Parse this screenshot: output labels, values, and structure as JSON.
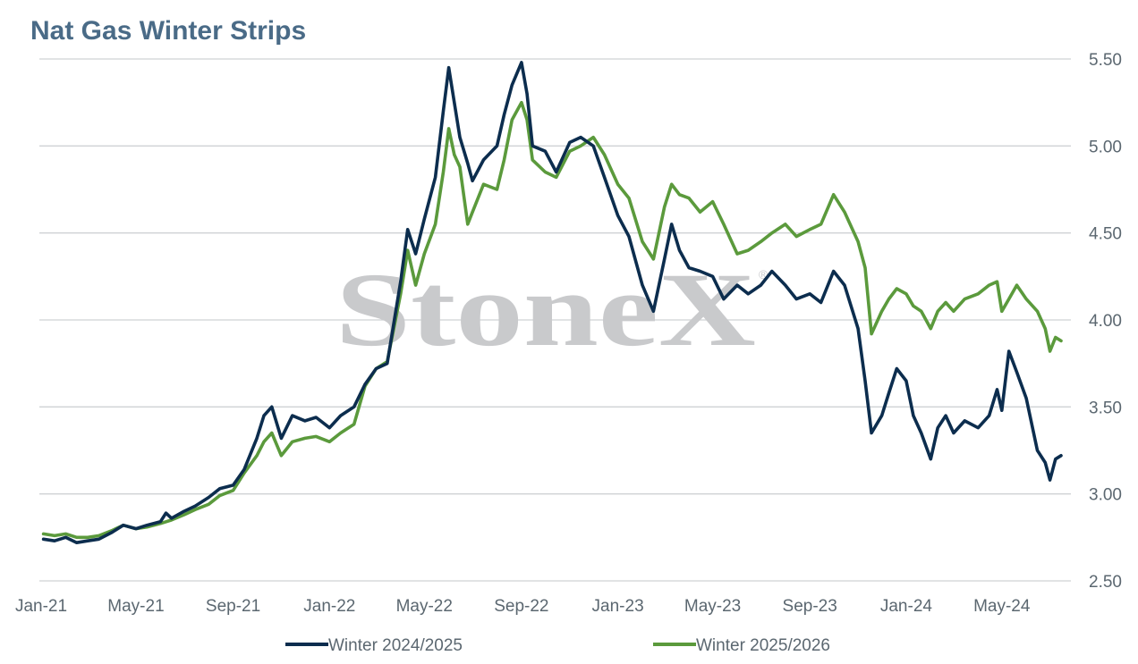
{
  "chart_data": {
    "type": "line",
    "title": "Nat Gas Winter Strips",
    "watermark": "StoneX",
    "watermark_mark": "®",
    "xlabel": "",
    "ylabel": "",
    "x_tick_labels": [
      "Jan-21",
      "May-21",
      "Sep-21",
      "Jan-22",
      "May-22",
      "Sep-22",
      "Jan-23",
      "May-23",
      "Sep-23",
      "Jan-24",
      "May-24"
    ],
    "y_tick_labels": [
      "5.50",
      "5.00",
      "4.50",
      "4.00",
      "3.50",
      "3.00",
      "2.50"
    ],
    "ylim": [
      2.5,
      5.5
    ],
    "y_axis_side": "right",
    "grid": "horizontal",
    "legend_position": "bottom",
    "colors": {
      "title": "#4a6b87",
      "grid": "#cfd2d4",
      "tick_text": "#5b6770"
    },
    "series": [
      {
        "name": "Winter 2024/2025",
        "color": "#0c2d4e",
        "points": [
          [
            "2021-01-04",
            2.74
          ],
          [
            "2021-01-18",
            2.73
          ],
          [
            "2021-02-01",
            2.75
          ],
          [
            "2021-02-15",
            2.72
          ],
          [
            "2021-03-01",
            2.73
          ],
          [
            "2021-03-15",
            2.74
          ],
          [
            "2021-04-01",
            2.78
          ],
          [
            "2021-04-15",
            2.82
          ],
          [
            "2021-05-01",
            2.8
          ],
          [
            "2021-05-15",
            2.82
          ],
          [
            "2021-06-01",
            2.84
          ],
          [
            "2021-06-08",
            2.89
          ],
          [
            "2021-06-15",
            2.86
          ],
          [
            "2021-07-01",
            2.9
          ],
          [
            "2021-07-15",
            2.93
          ],
          [
            "2021-08-01",
            2.98
          ],
          [
            "2021-08-15",
            3.03
          ],
          [
            "2021-09-01",
            3.05
          ],
          [
            "2021-09-15",
            3.14
          ],
          [
            "2021-10-01",
            3.32
          ],
          [
            "2021-10-10",
            3.45
          ],
          [
            "2021-10-20",
            3.5
          ],
          [
            "2021-11-01",
            3.32
          ],
          [
            "2021-11-15",
            3.45
          ],
          [
            "2021-12-01",
            3.42
          ],
          [
            "2021-12-15",
            3.44
          ],
          [
            "2022-01-01",
            3.38
          ],
          [
            "2022-01-15",
            3.45
          ],
          [
            "2022-02-01",
            3.5
          ],
          [
            "2022-02-15",
            3.63
          ],
          [
            "2022-03-01",
            3.72
          ],
          [
            "2022-03-15",
            3.75
          ],
          [
            "2022-04-01",
            4.22
          ],
          [
            "2022-04-10",
            4.52
          ],
          [
            "2022-04-20",
            4.38
          ],
          [
            "2022-05-01",
            4.58
          ],
          [
            "2022-05-15",
            4.82
          ],
          [
            "2022-05-25",
            5.2
          ],
          [
            "2022-06-01",
            5.45
          ],
          [
            "2022-06-08",
            5.25
          ],
          [
            "2022-06-15",
            5.05
          ],
          [
            "2022-06-25",
            4.9
          ],
          [
            "2022-07-01",
            4.8
          ],
          [
            "2022-07-15",
            4.92
          ],
          [
            "2022-08-01",
            5.0
          ],
          [
            "2022-08-10",
            5.18
          ],
          [
            "2022-08-20",
            5.35
          ],
          [
            "2022-09-01",
            5.48
          ],
          [
            "2022-09-08",
            5.3
          ],
          [
            "2022-09-15",
            5.0
          ],
          [
            "2022-10-01",
            4.97
          ],
          [
            "2022-10-15",
            4.85
          ],
          [
            "2022-11-01",
            5.02
          ],
          [
            "2022-11-15",
            5.05
          ],
          [
            "2022-12-01",
            5.0
          ],
          [
            "2022-12-15",
            4.82
          ],
          [
            "2023-01-01",
            4.6
          ],
          [
            "2023-01-15",
            4.48
          ],
          [
            "2023-02-01",
            4.2
          ],
          [
            "2023-02-15",
            4.05
          ],
          [
            "2023-03-01",
            4.35
          ],
          [
            "2023-03-10",
            4.55
          ],
          [
            "2023-03-20",
            4.4
          ],
          [
            "2023-04-01",
            4.3
          ],
          [
            "2023-04-15",
            4.28
          ],
          [
            "2023-05-01",
            4.25
          ],
          [
            "2023-05-15",
            4.12
          ],
          [
            "2023-06-01",
            4.2
          ],
          [
            "2023-06-15",
            4.15
          ],
          [
            "2023-07-01",
            4.2
          ],
          [
            "2023-07-15",
            4.28
          ],
          [
            "2023-08-01",
            4.2
          ],
          [
            "2023-08-15",
            4.12
          ],
          [
            "2023-09-01",
            4.15
          ],
          [
            "2023-09-15",
            4.1
          ],
          [
            "2023-10-01",
            4.28
          ],
          [
            "2023-10-15",
            4.2
          ],
          [
            "2023-11-01",
            3.95
          ],
          [
            "2023-11-10",
            3.65
          ],
          [
            "2023-11-18",
            3.35
          ],
          [
            "2023-12-01",
            3.45
          ],
          [
            "2023-12-10",
            3.58
          ],
          [
            "2023-12-20",
            3.72
          ],
          [
            "2024-01-01",
            3.65
          ],
          [
            "2024-01-10",
            3.45
          ],
          [
            "2024-01-20",
            3.35
          ],
          [
            "2024-02-01",
            3.2
          ],
          [
            "2024-02-10",
            3.38
          ],
          [
            "2024-02-20",
            3.45
          ],
          [
            "2024-03-01",
            3.35
          ],
          [
            "2024-03-15",
            3.42
          ],
          [
            "2024-04-01",
            3.38
          ],
          [
            "2024-04-15",
            3.45
          ],
          [
            "2024-04-25",
            3.6
          ],
          [
            "2024-05-01",
            3.48
          ],
          [
            "2024-05-10",
            3.82
          ],
          [
            "2024-05-20",
            3.7
          ],
          [
            "2024-06-01",
            3.55
          ],
          [
            "2024-06-15",
            3.25
          ],
          [
            "2024-06-25",
            3.18
          ],
          [
            "2024-07-01",
            3.08
          ],
          [
            "2024-07-08",
            3.2
          ],
          [
            "2024-07-15",
            3.22
          ]
        ]
      },
      {
        "name": "Winter 2025/2026",
        "color": "#5b9a3c",
        "points": [
          [
            "2021-01-04",
            2.77
          ],
          [
            "2021-01-18",
            2.76
          ],
          [
            "2021-02-01",
            2.77
          ],
          [
            "2021-02-15",
            2.75
          ],
          [
            "2021-03-01",
            2.75
          ],
          [
            "2021-03-15",
            2.76
          ],
          [
            "2021-04-01",
            2.79
          ],
          [
            "2021-04-15",
            2.82
          ],
          [
            "2021-05-01",
            2.8
          ],
          [
            "2021-05-15",
            2.81
          ],
          [
            "2021-06-01",
            2.83
          ],
          [
            "2021-06-15",
            2.85
          ],
          [
            "2021-07-01",
            2.88
          ],
          [
            "2021-07-15",
            2.91
          ],
          [
            "2021-08-01",
            2.94
          ],
          [
            "2021-08-15",
            2.99
          ],
          [
            "2021-09-01",
            3.02
          ],
          [
            "2021-09-15",
            3.12
          ],
          [
            "2021-10-01",
            3.22
          ],
          [
            "2021-10-10",
            3.3
          ],
          [
            "2021-10-20",
            3.35
          ],
          [
            "2021-11-01",
            3.22
          ],
          [
            "2021-11-15",
            3.3
          ],
          [
            "2021-12-01",
            3.32
          ],
          [
            "2021-12-15",
            3.33
          ],
          [
            "2022-01-01",
            3.3
          ],
          [
            "2022-01-15",
            3.35
          ],
          [
            "2022-02-01",
            3.4
          ],
          [
            "2022-02-15",
            3.62
          ],
          [
            "2022-03-01",
            3.72
          ],
          [
            "2022-03-15",
            3.76
          ],
          [
            "2022-04-01",
            4.15
          ],
          [
            "2022-04-10",
            4.4
          ],
          [
            "2022-04-20",
            4.2
          ],
          [
            "2022-05-01",
            4.38
          ],
          [
            "2022-05-15",
            4.55
          ],
          [
            "2022-05-25",
            4.85
          ],
          [
            "2022-06-01",
            5.1
          ],
          [
            "2022-06-08",
            4.95
          ],
          [
            "2022-06-15",
            4.88
          ],
          [
            "2022-06-25",
            4.55
          ],
          [
            "2022-07-01",
            4.62
          ],
          [
            "2022-07-15",
            4.78
          ],
          [
            "2022-08-01",
            4.75
          ],
          [
            "2022-08-10",
            4.92
          ],
          [
            "2022-08-20",
            5.15
          ],
          [
            "2022-09-01",
            5.25
          ],
          [
            "2022-09-08",
            5.15
          ],
          [
            "2022-09-15",
            4.92
          ],
          [
            "2022-10-01",
            4.85
          ],
          [
            "2022-10-15",
            4.82
          ],
          [
            "2022-11-01",
            4.97
          ],
          [
            "2022-11-15",
            5.0
          ],
          [
            "2022-12-01",
            5.05
          ],
          [
            "2022-12-15",
            4.95
          ],
          [
            "2023-01-01",
            4.78
          ],
          [
            "2023-01-15",
            4.7
          ],
          [
            "2023-02-01",
            4.45
          ],
          [
            "2023-02-15",
            4.35
          ],
          [
            "2023-03-01",
            4.65
          ],
          [
            "2023-03-10",
            4.78
          ],
          [
            "2023-03-20",
            4.72
          ],
          [
            "2023-04-01",
            4.7
          ],
          [
            "2023-04-15",
            4.62
          ],
          [
            "2023-05-01",
            4.68
          ],
          [
            "2023-05-15",
            4.55
          ],
          [
            "2023-06-01",
            4.38
          ],
          [
            "2023-06-15",
            4.4
          ],
          [
            "2023-07-01",
            4.45
          ],
          [
            "2023-07-15",
            4.5
          ],
          [
            "2023-08-01",
            4.55
          ],
          [
            "2023-08-15",
            4.48
          ],
          [
            "2023-09-01",
            4.52
          ],
          [
            "2023-09-15",
            4.55
          ],
          [
            "2023-10-01",
            4.72
          ],
          [
            "2023-10-15",
            4.62
          ],
          [
            "2023-11-01",
            4.45
          ],
          [
            "2023-11-10",
            4.3
          ],
          [
            "2023-11-18",
            3.92
          ],
          [
            "2023-12-01",
            4.05
          ],
          [
            "2023-12-10",
            4.12
          ],
          [
            "2023-12-20",
            4.18
          ],
          [
            "2024-01-01",
            4.15
          ],
          [
            "2024-01-10",
            4.08
          ],
          [
            "2024-01-20",
            4.05
          ],
          [
            "2024-02-01",
            3.95
          ],
          [
            "2024-02-10",
            4.05
          ],
          [
            "2024-02-20",
            4.1
          ],
          [
            "2024-03-01",
            4.05
          ],
          [
            "2024-03-15",
            4.12
          ],
          [
            "2024-04-01",
            4.15
          ],
          [
            "2024-04-15",
            4.2
          ],
          [
            "2024-04-25",
            4.22
          ],
          [
            "2024-05-01",
            4.05
          ],
          [
            "2024-05-10",
            4.12
          ],
          [
            "2024-05-20",
            4.2
          ],
          [
            "2024-06-01",
            4.12
          ],
          [
            "2024-06-15",
            4.05
          ],
          [
            "2024-06-25",
            3.95
          ],
          [
            "2024-07-01",
            3.82
          ],
          [
            "2024-07-08",
            3.9
          ],
          [
            "2024-07-15",
            3.88
          ]
        ]
      }
    ]
  }
}
